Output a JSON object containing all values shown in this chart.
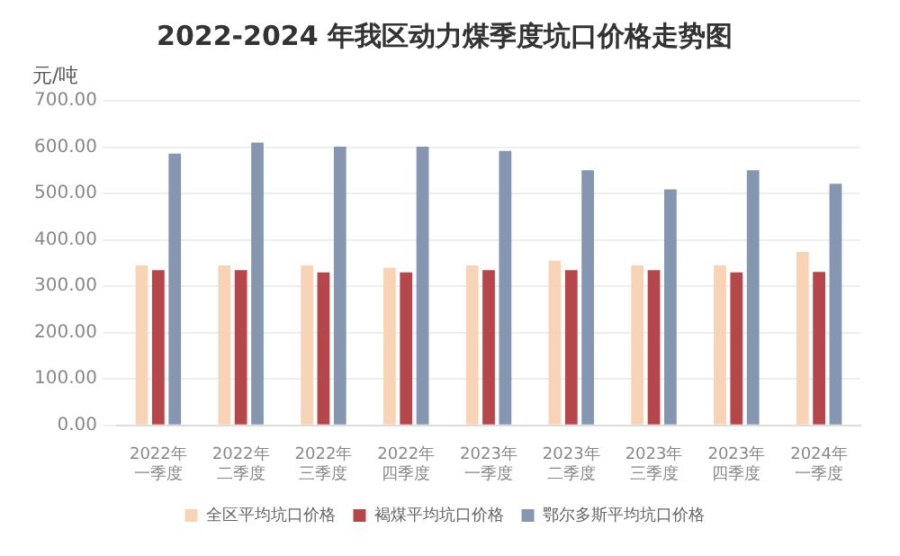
{
  "chart_data": {
    "type": "bar",
    "title": "2022-2024 年我区动力煤季度坑口价格走势图",
    "ylabel": "元/吨",
    "categories": [
      "2022年一季度",
      "2022年二季度",
      "2022年三季度",
      "2022年四季度",
      "2023年一季度",
      "2023年二季度",
      "2023年三季度",
      "2023年四季度",
      "2024年一季度"
    ],
    "series": [
      {
        "name": "全区平均坑口价格",
        "color": "#f9d3b5",
        "values": [
          345,
          345,
          345,
          340,
          345,
          355,
          345,
          345,
          374
        ]
      },
      {
        "name": "褐煤平均坑口价格",
        "color": "#b5474b",
        "values": [
          335,
          335,
          330,
          330,
          335,
          335,
          335,
          330,
          331
        ]
      },
      {
        "name": "鄂尔多斯平均坑口价格",
        "color": "#8496b0",
        "values": [
          586,
          610,
          601,
          601,
          592,
          550,
          509,
          550,
          521
        ]
      }
    ],
    "ylim": [
      0,
      700
    ],
    "yticks": [
      {
        "value": 0,
        "label": "0.00"
      },
      {
        "value": 100,
        "label": "100.00"
      },
      {
        "value": 200,
        "label": "200.00"
      },
      {
        "value": 300,
        "label": "300.00"
      },
      {
        "value": 400,
        "label": "400.00"
      },
      {
        "value": 500,
        "label": "500.00"
      },
      {
        "value": 600,
        "label": "600.00"
      },
      {
        "value": 700,
        "label": "700.00"
      }
    ],
    "grid": "y",
    "legend": "bottom"
  }
}
